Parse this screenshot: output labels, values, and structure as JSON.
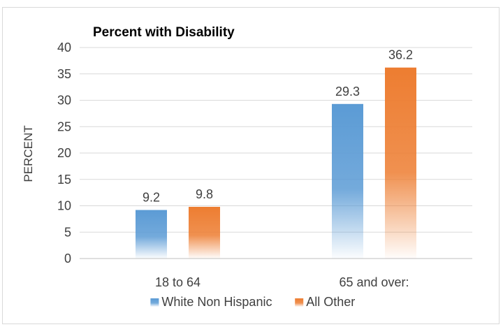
{
  "chart_data": {
    "type": "bar",
    "title": "Percent with Disability",
    "xlabel": "",
    "ylabel": "PERCENT",
    "categories": [
      "18 to 64",
      "65 and over:"
    ],
    "series": [
      {
        "name": "White Non Hispanic",
        "values": [
          9.2,
          29.3
        ],
        "color": "#5b9bd5"
      },
      {
        "name": "All Other",
        "values": [
          9.8,
          36.2
        ],
        "color": "#ed7d31"
      }
    ],
    "ylim": [
      0,
      40
    ],
    "yticks": [
      0,
      5,
      10,
      15,
      20,
      25,
      30,
      35,
      40
    ],
    "grid": true,
    "legend": "bottom"
  }
}
